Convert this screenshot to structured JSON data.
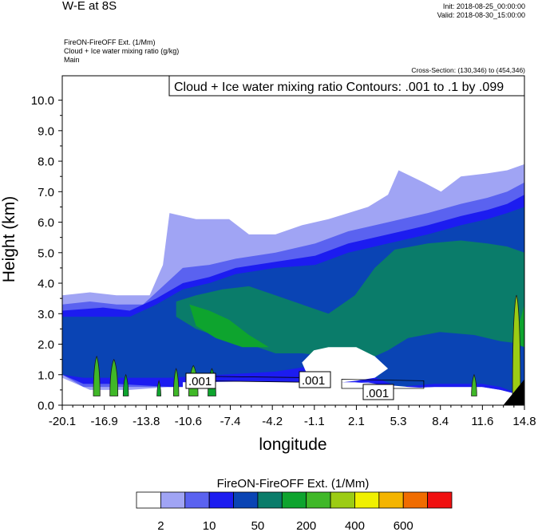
{
  "header": {
    "title": "W-E at 8S",
    "init": "Init: 2018-08-25_00:00:00",
    "valid": "Valid: 2018-08-30_15:00:00",
    "field_lines": [
      "FireON-FireOFF Ext.   (1/Mm)",
      "Cloud + Ice water mixing ratio   (g/kg)",
      "Main"
    ],
    "cross_section": "Cross-Section: (130,346) to (454,346)"
  },
  "chart_data": {
    "type": "contour",
    "contour_label": "Cloud + Ice water mixing ratio Contours: .001 to .1 by .099",
    "xlabel": "longitude",
    "ylabel": "Height (km)",
    "x_ticks": [
      "-20.1",
      "-16.9",
      "-13.8",
      "-10.6",
      "-7.4",
      "-4.2",
      "-1.1",
      "2.1",
      "5.3",
      "8.4",
      "11.6",
      "14.8"
    ],
    "y_ticks": [
      "0.0",
      "1.0",
      "2.0",
      "3.0",
      "4.0",
      "5.0",
      "6.0",
      "7.0",
      "8.0",
      "9.0",
      "10.0"
    ],
    "xlim": [
      -20.1,
      14.8
    ],
    "ylim": [
      0,
      10.8
    ],
    "contour_value_labels": [
      ".001",
      ".001",
      ".001"
    ],
    "colorbar": {
      "title": "FireON-FireOFF Ext.  (1/Mm)",
      "tick_labels": [
        "2",
        "10",
        "50",
        "200",
        "400",
        "600"
      ],
      "colors": [
        "#ffffff",
        "#a0a4f4",
        "#5a62f0",
        "#1c1cf0",
        "#0a44b4",
        "#0a7c6a",
        "#0ea42e",
        "#40b828",
        "#9ccc14",
        "#f0f000",
        "#f4b400",
        "#f06c00",
        "#f01010"
      ]
    },
    "depth_bands_km": [
      {
        "level": 1,
        "points": [
          [
            -20.1,
            0.9
          ],
          [
            -20.1,
            3.6
          ],
          [
            -18.0,
            3.7
          ],
          [
            -16.0,
            3.6
          ],
          [
            -13.5,
            3.6
          ],
          [
            -12.5,
            4.6
          ],
          [
            -12.0,
            6.3
          ],
          [
            -10.0,
            6.1
          ],
          [
            -7.5,
            6.1
          ],
          [
            -6.0,
            5.6
          ],
          [
            -4.0,
            5.6
          ],
          [
            -2.0,
            5.9
          ],
          [
            0.0,
            6.1
          ],
          [
            1.5,
            6.3
          ],
          [
            3.0,
            6.5
          ],
          [
            4.5,
            6.9
          ],
          [
            5.3,
            7.7
          ],
          [
            7.2,
            7.3
          ],
          [
            8.5,
            7.0
          ],
          [
            10.0,
            7.5
          ],
          [
            12.0,
            7.6
          ],
          [
            13.5,
            7.7
          ],
          [
            14.8,
            7.9
          ],
          [
            14.8,
            0.3
          ],
          [
            13.5,
            0.5
          ],
          [
            11.6,
            0.6
          ],
          [
            9.0,
            0.6
          ],
          [
            6.5,
            0.6
          ],
          [
            5.3,
            0.55
          ],
          [
            3.0,
            0.7
          ],
          [
            0.0,
            0.6
          ],
          [
            -4.0,
            0.6
          ],
          [
            -8.0,
            0.6
          ],
          [
            -12.0,
            0.6
          ],
          [
            -15.0,
            0.5
          ],
          [
            -18.0,
            0.5
          ]
        ]
      },
      {
        "level": 2,
        "points": [
          [
            -20.1,
            1.0
          ],
          [
            -20.1,
            3.3
          ],
          [
            -18.0,
            3.4
          ],
          [
            -16.0,
            3.3
          ],
          [
            -14.0,
            3.3
          ],
          [
            -12.5,
            3.9
          ],
          [
            -11.0,
            4.5
          ],
          [
            -9.0,
            4.6
          ],
          [
            -7.0,
            4.8
          ],
          [
            -4.0,
            5.0
          ],
          [
            -1.0,
            5.3
          ],
          [
            1.5,
            5.7
          ],
          [
            4.5,
            6.0
          ],
          [
            7.5,
            6.3
          ],
          [
            10.0,
            6.6
          ],
          [
            12.0,
            6.8
          ],
          [
            13.5,
            7.0
          ],
          [
            14.8,
            7.3
          ],
          [
            14.8,
            0.3
          ],
          [
            13.0,
            0.5
          ],
          [
            11.6,
            0.6
          ],
          [
            8.0,
            0.6
          ],
          [
            5.3,
            0.55
          ],
          [
            3.0,
            0.75
          ],
          [
            0.0,
            0.65
          ],
          [
            -4.0,
            0.6
          ],
          [
            -8.0,
            0.6
          ],
          [
            -12.0,
            0.6
          ],
          [
            -16.0,
            0.6
          ],
          [
            -18.5,
            0.6
          ]
        ]
      },
      {
        "level": 3,
        "points": [
          [
            -20.1,
            1.0
          ],
          [
            -20.1,
            3.1
          ],
          [
            -17.0,
            3.2
          ],
          [
            -15.0,
            3.1
          ],
          [
            -13.0,
            3.5
          ],
          [
            -11.0,
            4.0
          ],
          [
            -9.0,
            4.2
          ],
          [
            -7.0,
            4.5
          ],
          [
            -4.0,
            4.7
          ],
          [
            -1.0,
            4.9
          ],
          [
            1.5,
            5.3
          ],
          [
            4.5,
            5.6
          ],
          [
            7.5,
            5.9
          ],
          [
            10.0,
            6.2
          ],
          [
            12.0,
            6.4
          ],
          [
            13.5,
            6.6
          ],
          [
            14.8,
            6.9
          ],
          [
            14.8,
            0.3
          ],
          [
            13.0,
            0.5
          ],
          [
            11.6,
            0.6
          ],
          [
            8.0,
            0.6
          ],
          [
            5.3,
            0.55
          ],
          [
            3.0,
            0.75
          ],
          [
            0.0,
            0.7
          ],
          [
            -4.0,
            0.6
          ],
          [
            -8.0,
            0.6
          ],
          [
            -12.0,
            0.6
          ],
          [
            -16.0,
            0.7
          ],
          [
            -18.5,
            0.7
          ]
        ]
      },
      {
        "level": 4,
        "points": [
          [
            -20.1,
            1.0
          ],
          [
            -20.1,
            2.9
          ],
          [
            -17.0,
            2.9
          ],
          [
            -15.0,
            2.9
          ],
          [
            -13.0,
            3.3
          ],
          [
            -11.0,
            3.8
          ],
          [
            -9.0,
            4.0
          ],
          [
            -7.0,
            4.3
          ],
          [
            -4.0,
            4.5
          ],
          [
            -1.0,
            4.6
          ],
          [
            1.5,
            5.0
          ],
          [
            4.5,
            5.3
          ],
          [
            7.5,
            5.6
          ],
          [
            10.0,
            5.9
          ],
          [
            12.0,
            6.1
          ],
          [
            13.5,
            6.3
          ],
          [
            14.8,
            6.5
          ],
          [
            14.8,
            0.3
          ],
          [
            13.0,
            0.6
          ],
          [
            11.6,
            0.7
          ],
          [
            8.0,
            0.7
          ],
          [
            5.3,
            0.6
          ],
          [
            3.0,
            1.0
          ],
          [
            -1.1,
            1.3
          ],
          [
            -4.0,
            1.1
          ],
          [
            -8.0,
            1.0
          ],
          [
            -12.0,
            0.9
          ],
          [
            -16.0,
            0.9
          ],
          [
            -18.5,
            0.9
          ]
        ]
      },
      {
        "level": 5,
        "points": [
          [
            -11.5,
            3.4
          ],
          [
            -10.0,
            3.6
          ],
          [
            -8.0,
            3.8
          ],
          [
            -6.0,
            3.9
          ],
          [
            -4.0,
            3.6
          ],
          [
            -2.0,
            3.3
          ],
          [
            0.0,
            3.0
          ],
          [
            2.0,
            3.6
          ],
          [
            3.5,
            4.5
          ],
          [
            5.0,
            5.1
          ],
          [
            7.5,
            5.3
          ],
          [
            10.0,
            5.4
          ],
          [
            12.0,
            5.3
          ],
          [
            13.5,
            5.2
          ],
          [
            14.8,
            5.0
          ],
          [
            14.8,
            2.0
          ],
          [
            13.0,
            2.1
          ],
          [
            11.0,
            2.3
          ],
          [
            8.4,
            2.4
          ],
          [
            6.0,
            2.2
          ],
          [
            4.5,
            1.8
          ],
          [
            3.0,
            1.5
          ],
          [
            0.0,
            1.6
          ],
          [
            -2.0,
            1.7
          ],
          [
            -4.0,
            1.7
          ],
          [
            -6.0,
            2.0
          ],
          [
            -8.0,
            2.2
          ],
          [
            -10.0,
            2.5
          ],
          [
            -11.5,
            2.9
          ]
        ]
      },
      {
        "level": 6,
        "points": [
          [
            -10.5,
            3.3
          ],
          [
            -9.0,
            3.1
          ],
          [
            -7.5,
            2.8
          ],
          [
            -6.0,
            2.3
          ],
          [
            -4.5,
            1.9
          ],
          [
            -6.5,
            1.9
          ],
          [
            -8.5,
            2.2
          ],
          [
            -10.0,
            2.6
          ]
        ]
      },
      {
        "level": 6,
        "points": [
          [
            14.0,
            2.5
          ],
          [
            14.5,
            2.8
          ],
          [
            14.8,
            3.3
          ],
          [
            14.8,
            1.9
          ],
          [
            14.2,
            2.0
          ]
        ]
      }
    ],
    "cavity_km": [
      [
        -1.1,
        1.8
      ],
      [
        0.0,
        1.9
      ],
      [
        2.1,
        1.9
      ],
      [
        3.5,
        1.6
      ],
      [
        4.5,
        1.2
      ],
      [
        3.5,
        0.9
      ],
      [
        2.1,
        0.8
      ],
      [
        0.0,
        0.7
      ],
      [
        -1.5,
        0.9
      ],
      [
        -2.0,
        1.4
      ]
    ],
    "lower_cavity_km": [
      [
        -11.0,
        0.75
      ],
      [
        -6.0,
        0.78
      ],
      [
        -2.0,
        0.75
      ],
      [
        2.0,
        0.75
      ],
      [
        6.0,
        0.6
      ],
      [
        8.0,
        0.55
      ],
      [
        11.0,
        0.5
      ],
      [
        11.0,
        0.0
      ],
      [
        -11.0,
        0.0
      ]
    ],
    "plumes_km": [
      {
        "x": -17.5,
        "h": 1.6,
        "w": 0.5,
        "level": 7
      },
      {
        "x": -16.2,
        "h": 1.5,
        "w": 0.6,
        "level": 7
      },
      {
        "x": -15.3,
        "h": 1.0,
        "w": 0.4,
        "level": 6
      },
      {
        "x": -12.8,
        "h": 0.8,
        "w": 0.3,
        "level": 6
      },
      {
        "x": -11.5,
        "h": 1.2,
        "w": 0.4,
        "level": 7
      },
      {
        "x": -10.2,
        "h": 1.3,
        "w": 0.7,
        "level": 7
      },
      {
        "x": -8.8,
        "h": 1.2,
        "w": 0.6,
        "level": 6
      },
      {
        "x": 11.0,
        "h": 1.0,
        "w": 0.4,
        "level": 7
      },
      {
        "x": 14.2,
        "h": 3.6,
        "w": 0.6,
        "level": 8
      }
    ]
  }
}
